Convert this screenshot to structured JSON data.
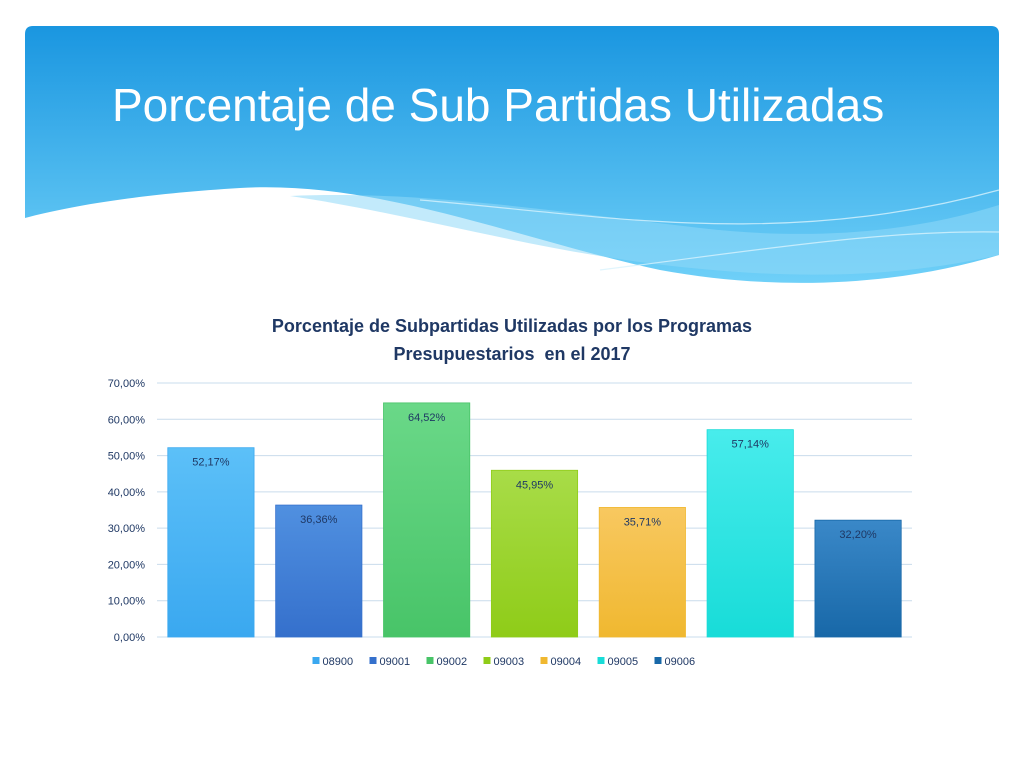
{
  "slide": {
    "title": "Porcentaje de Sub Partidas Utilizadas"
  },
  "colors": {
    "header_top": "#1a96e0",
    "header_bottom": "#6fd0f8",
    "title_text": "#ffffff",
    "chart_title": "#1f3864",
    "gridline": "#c9dcec",
    "axis_text": "#1f3864"
  },
  "chart_data": {
    "type": "bar",
    "title_lines": [
      "Porcentaje de Subpartidas Utilizadas por los Programas",
      "Presupuestarios  en el 2017"
    ],
    "categories": [
      "08900",
      "09001",
      "09002",
      "09003",
      "09004",
      "09005",
      "09006"
    ],
    "values": [
      52.17,
      36.36,
      64.52,
      45.95,
      35.71,
      57.14,
      32.2
    ],
    "value_labels": [
      "52,17%",
      "36,36%",
      "64,52%",
      "45,95%",
      "35,71%",
      "57,14%",
      "32,20%"
    ],
    "colors": [
      "#3aa8f0",
      "#3570cc",
      "#48c468",
      "#8fcc18",
      "#f0b830",
      "#18dcd8",
      "#1868a8"
    ],
    "colors_light": [
      "#5cc0f8",
      "#5090e0",
      "#6ad888",
      "#a8dc48",
      "#f8c860",
      "#48ecec",
      "#3a88c8"
    ],
    "ylim": [
      0,
      70
    ],
    "yticks": [
      0,
      10,
      20,
      30,
      40,
      50,
      60,
      70
    ],
    "ytick_labels": [
      "0,00%",
      "10,00%",
      "20,00%",
      "30,00%",
      "40,00%",
      "50,00%",
      "60,00%",
      "70,00%"
    ],
    "grid": true,
    "legend_position": "bottom",
    "xlabel": "",
    "ylabel": ""
  }
}
